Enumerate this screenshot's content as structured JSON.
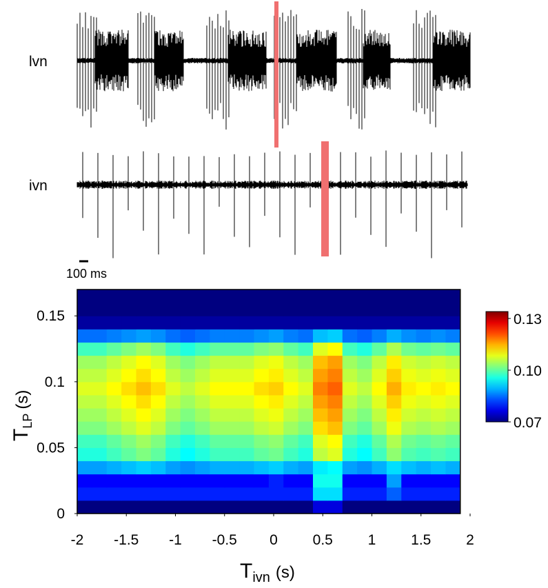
{
  "traces": {
    "labels": [
      "lvn",
      "ivn"
    ],
    "scale_bar": "100 ms"
  },
  "chart_data": {
    "type": "heatmap",
    "xlabel": {
      "main": "T",
      "sub": "ivn",
      "unit": "(s)"
    },
    "ylabel": {
      "main": "T",
      "sub": "LP",
      "unit": "(s)"
    },
    "xlim": [
      -2,
      2
    ],
    "ylim": [
      0,
      0.17
    ],
    "xticks": [
      -2,
      -1.5,
      -1,
      -0.5,
      0,
      0.5,
      1,
      1.5,
      2
    ],
    "yticks": [
      0,
      0.05,
      0.1,
      0.15
    ],
    "clim": [
      0.07,
      0.134
    ],
    "colormap": "jet",
    "colorbar_ticks": [
      0.07,
      {
        "value": 0.1,
        "label": "0.10"
      },
      0.13
    ],
    "x": [
      -1.925,
      -1.775,
      -1.625,
      -1.475,
      -1.325,
      -1.175,
      -1.025,
      -0.875,
      -0.725,
      -0.575,
      -0.425,
      -0.275,
      -0.125,
      0.025,
      0.175,
      0.325,
      0.475,
      0.625,
      0.775,
      0.925,
      1.075,
      1.225,
      1.375,
      1.525,
      1.675,
      1.825
    ],
    "y": [
      0.005,
      0.015,
      0.025,
      0.035,
      0.045,
      0.055,
      0.065,
      0.075,
      0.085,
      0.095,
      0.105,
      0.115,
      0.125,
      0.135,
      0.145,
      0.155,
      0.165
    ],
    "values": [
      [
        0.07,
        0.07,
        0.07,
        0.07,
        0.07,
        0.07,
        0.07,
        0.07,
        0.07,
        0.07,
        0.07,
        0.07,
        0.07,
        0.07,
        0.07,
        0.07,
        0.076,
        0.076,
        0.07,
        0.07,
        0.07,
        0.07,
        0.07,
        0.07,
        0.07,
        0.07
      ],
      [
        0.08,
        0.08,
        0.08,
        0.08,
        0.08,
        0.08,
        0.08,
        0.08,
        0.08,
        0.08,
        0.08,
        0.08,
        0.08,
        0.08,
        0.08,
        0.08,
        0.092,
        0.092,
        0.08,
        0.08,
        0.08,
        0.084,
        0.08,
        0.08,
        0.08,
        0.08
      ],
      [
        0.078,
        0.078,
        0.078,
        0.078,
        0.078,
        0.078,
        0.078,
        0.078,
        0.078,
        0.078,
        0.078,
        0.078,
        0.078,
        0.08,
        0.078,
        0.078,
        0.095,
        0.095,
        0.078,
        0.078,
        0.078,
        0.088,
        0.078,
        0.078,
        0.078,
        0.078
      ],
      [
        0.088,
        0.088,
        0.089,
        0.09,
        0.091,
        0.09,
        0.088,
        0.087,
        0.088,
        0.089,
        0.089,
        0.089,
        0.09,
        0.091,
        0.089,
        0.088,
        0.093,
        0.094,
        0.088,
        0.087,
        0.089,
        0.092,
        0.09,
        0.089,
        0.09,
        0.089
      ],
      [
        0.096,
        0.096,
        0.098,
        0.1,
        0.102,
        0.1,
        0.096,
        0.094,
        0.096,
        0.098,
        0.098,
        0.098,
        0.1,
        0.101,
        0.098,
        0.096,
        0.106,
        0.108,
        0.096,
        0.094,
        0.098,
        0.103,
        0.099,
        0.098,
        0.099,
        0.098
      ],
      [
        0.098,
        0.098,
        0.1,
        0.102,
        0.104,
        0.102,
        0.098,
        0.096,
        0.098,
        0.1,
        0.1,
        0.1,
        0.102,
        0.103,
        0.1,
        0.098,
        0.108,
        0.11,
        0.098,
        0.096,
        0.1,
        0.105,
        0.101,
        0.1,
        0.101,
        0.1
      ],
      [
        0.102,
        0.102,
        0.104,
        0.106,
        0.108,
        0.106,
        0.102,
        0.1,
        0.102,
        0.104,
        0.104,
        0.104,
        0.106,
        0.107,
        0.104,
        0.102,
        0.112,
        0.114,
        0.102,
        0.1,
        0.104,
        0.109,
        0.105,
        0.104,
        0.105,
        0.104
      ],
      [
        0.104,
        0.104,
        0.106,
        0.108,
        0.11,
        0.108,
        0.104,
        0.102,
        0.104,
        0.106,
        0.106,
        0.106,
        0.108,
        0.109,
        0.106,
        0.104,
        0.114,
        0.116,
        0.104,
        0.102,
        0.106,
        0.111,
        0.107,
        0.106,
        0.107,
        0.106
      ],
      [
        0.106,
        0.106,
        0.108,
        0.11,
        0.112,
        0.11,
        0.106,
        0.104,
        0.106,
        0.108,
        0.108,
        0.108,
        0.11,
        0.111,
        0.108,
        0.106,
        0.116,
        0.118,
        0.106,
        0.104,
        0.108,
        0.113,
        0.109,
        0.108,
        0.109,
        0.108
      ],
      [
        0.108,
        0.108,
        0.11,
        0.112,
        0.114,
        0.112,
        0.108,
        0.106,
        0.108,
        0.11,
        0.11,
        0.11,
        0.112,
        0.113,
        0.11,
        0.108,
        0.118,
        0.12,
        0.108,
        0.106,
        0.11,
        0.115,
        0.111,
        0.11,
        0.111,
        0.11
      ],
      [
        0.106,
        0.106,
        0.108,
        0.11,
        0.112,
        0.11,
        0.106,
        0.104,
        0.106,
        0.108,
        0.108,
        0.108,
        0.11,
        0.111,
        0.108,
        0.106,
        0.116,
        0.118,
        0.106,
        0.104,
        0.108,
        0.113,
        0.109,
        0.108,
        0.109,
        0.108
      ],
      [
        0.104,
        0.104,
        0.106,
        0.108,
        0.11,
        0.108,
        0.104,
        0.102,
        0.104,
        0.106,
        0.106,
        0.106,
        0.108,
        0.109,
        0.106,
        0.104,
        0.114,
        0.116,
        0.104,
        0.102,
        0.106,
        0.111,
        0.107,
        0.106,
        0.107,
        0.106
      ],
      [
        0.098,
        0.098,
        0.1,
        0.102,
        0.104,
        0.102,
        0.098,
        0.096,
        0.098,
        0.1,
        0.1,
        0.1,
        0.102,
        0.103,
        0.1,
        0.098,
        0.108,
        0.11,
        0.098,
        0.096,
        0.1,
        0.105,
        0.101,
        0.1,
        0.101,
        0.1
      ],
      [
        0.085,
        0.085,
        0.086,
        0.087,
        0.088,
        0.087,
        0.085,
        0.084,
        0.085,
        0.086,
        0.086,
        0.086,
        0.087,
        0.088,
        0.086,
        0.085,
        0.09,
        0.091,
        0.085,
        0.084,
        0.086,
        0.089,
        0.087,
        0.086,
        0.087,
        0.086
      ],
      [
        0.072,
        0.072,
        0.072,
        0.072,
        0.072,
        0.072,
        0.072,
        0.072,
        0.072,
        0.072,
        0.072,
        0.072,
        0.072,
        0.072,
        0.072,
        0.072,
        0.072,
        0.072,
        0.072,
        0.072,
        0.072,
        0.072,
        0.072,
        0.072,
        0.072,
        0.072
      ],
      [
        0.07,
        0.07,
        0.07,
        0.07,
        0.07,
        0.07,
        0.07,
        0.07,
        0.07,
        0.07,
        0.07,
        0.07,
        0.07,
        0.07,
        0.07,
        0.07,
        0.07,
        0.07,
        0.07,
        0.07,
        0.07,
        0.07,
        0.07,
        0.07,
        0.07,
        0.07
      ],
      [
        0.07,
        0.07,
        0.07,
        0.07,
        0.07,
        0.07,
        0.07,
        0.07,
        0.07,
        0.07,
        0.07,
        0.07,
        0.07,
        0.07,
        0.07,
        0.07,
        0.07,
        0.07,
        0.07,
        0.07,
        0.07,
        0.07,
        0.07,
        0.07,
        0.07,
        0.07
      ]
    ]
  }
}
